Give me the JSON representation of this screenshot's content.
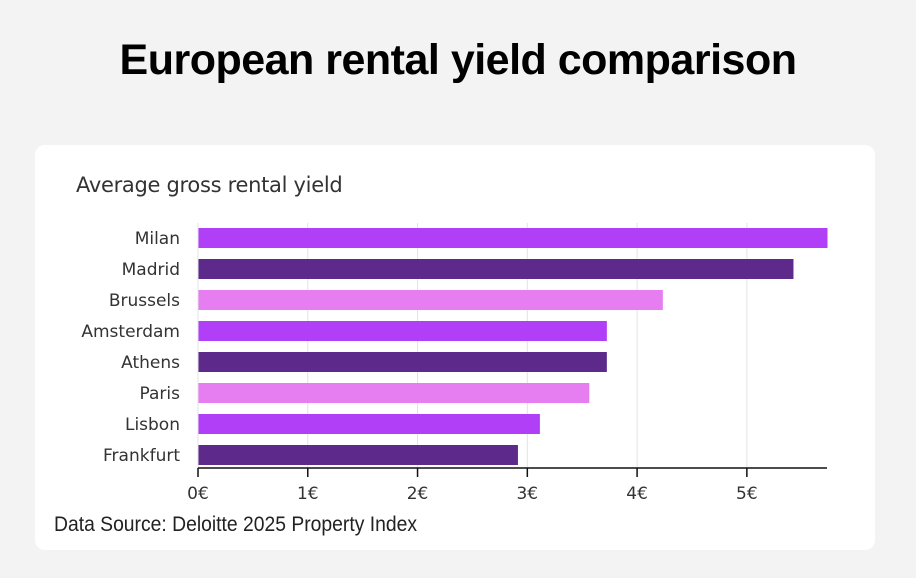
{
  "page": {
    "title": "European rental yield comparison"
  },
  "colors": {
    "background": "#f3f3f3",
    "card": "#ffffff",
    "bright_purple": "#b13ff8",
    "dark_purple": "#5d2a8c",
    "pink": "#e67ef2",
    "grid": "#e3e3e3",
    "axis": "#111111"
  },
  "chart_data": {
    "type": "bar",
    "orientation": "horizontal",
    "title": "Average gross rental yield",
    "source": "Data Source: Deloitte 2025 Property Index",
    "categories": [
      "Milan",
      "Madrid",
      "Brussels",
      "Amsterdam",
      "Athens",
      "Paris",
      "Lisbon",
      "Frankfurt"
    ],
    "values": [
      5.73,
      5.42,
      4.23,
      3.72,
      3.72,
      3.56,
      3.11,
      2.91
    ],
    "bar_colors": [
      "#b13ff8",
      "#5d2a8c",
      "#e67ef2",
      "#b13ff8",
      "#5d2a8c",
      "#e67ef2",
      "#b13ff8",
      "#5d2a8c"
    ],
    "xlabel": "",
    "ylabel": "",
    "xlim": [
      0,
      5.73
    ],
    "ticks": [
      0,
      1,
      2,
      3,
      4,
      5
    ],
    "tick_labels": [
      "0€",
      "1€",
      "2€",
      "3€",
      "4€",
      "5€"
    ],
    "grid": true,
    "legend": "none"
  }
}
